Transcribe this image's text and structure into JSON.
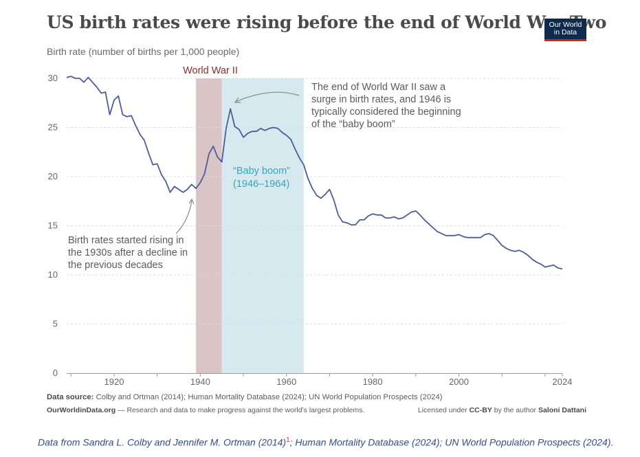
{
  "title": "US birth rates were rising before the end of World War Two",
  "subtitle": "Birth rate (number of births per 1,000 people)",
  "logo": "Our World in Data",
  "chart_data": {
    "type": "line",
    "title": "US birth rates were rising before the end of World War Two",
    "ylabel": "Birth rate (number of births per 1,000 people)",
    "xlim": [
      1909,
      2024
    ],
    "ylim": [
      0,
      30
    ],
    "y_ticks": [
      0,
      5,
      10,
      15,
      20,
      25,
      30
    ],
    "x_ticks": [
      1920,
      1940,
      1960,
      1980,
      2000,
      2024
    ],
    "grid": true,
    "series": [
      {
        "name": "US birth rate",
        "color": "#4c5b9c",
        "x": [
          1909,
          1910,
          1911,
          1912,
          1913,
          1914,
          1915,
          1916,
          1917,
          1918,
          1919,
          1920,
          1921,
          1922,
          1923,
          1924,
          1925,
          1926,
          1927,
          1928,
          1929,
          1930,
          1931,
          1932,
          1933,
          1934,
          1935,
          1936,
          1937,
          1938,
          1939,
          1940,
          1941,
          1942,
          1943,
          1944,
          1945,
          1946,
          1947,
          1948,
          1949,
          1950,
          1951,
          1952,
          1953,
          1954,
          1955,
          1956,
          1957,
          1958,
          1959,
          1960,
          1961,
          1962,
          1963,
          1964,
          1965,
          1966,
          1967,
          1968,
          1969,
          1970,
          1971,
          1972,
          1973,
          1974,
          1975,
          1976,
          1977,
          1978,
          1979,
          1980,
          1981,
          1982,
          1983,
          1984,
          1985,
          1986,
          1987,
          1988,
          1989,
          1990,
          1991,
          1992,
          1993,
          1994,
          1995,
          1996,
          1997,
          1998,
          1999,
          2000,
          2001,
          2002,
          2003,
          2004,
          2005,
          2006,
          2007,
          2008,
          2009,
          2010,
          2011,
          2012,
          2013,
          2014,
          2015,
          2016,
          2017,
          2018,
          2019,
          2020,
          2021,
          2022,
          2023,
          2024
        ],
        "values": [
          30.1,
          30.2,
          30.0,
          30.0,
          29.6,
          30.1,
          29.6,
          29.1,
          28.5,
          28.6,
          26.3,
          27.8,
          28.2,
          26.3,
          26.1,
          26.2,
          25.2,
          24.3,
          23.7,
          22.4,
          21.2,
          21.3,
          20.2,
          19.5,
          18.4,
          19.0,
          18.7,
          18.4,
          18.7,
          19.2,
          18.8,
          19.4,
          20.3,
          22.3,
          23.1,
          22.0,
          21.5,
          24.9,
          26.9,
          25.1,
          24.8,
          24.0,
          24.4,
          24.6,
          24.6,
          24.9,
          24.7,
          24.9,
          25.0,
          24.9,
          24.5,
          24.2,
          23.8,
          22.8,
          21.9,
          21.2,
          19.8,
          18.8,
          18.1,
          17.8,
          18.2,
          18.7,
          17.6,
          16.1,
          15.4,
          15.3,
          15.1,
          15.1,
          15.6,
          15.6,
          16.0,
          16.2,
          16.1,
          16.1,
          15.8,
          15.8,
          15.9,
          15.7,
          15.8,
          16.1,
          16.4,
          16.5,
          16.1,
          15.6,
          15.2,
          14.8,
          14.4,
          14.2,
          14.0,
          14.0,
          14.0,
          14.1,
          13.9,
          13.8,
          13.8,
          13.8,
          13.8,
          14.1,
          14.2,
          14.0,
          13.5,
          13.0,
          12.7,
          12.5,
          12.4,
          12.5,
          12.3,
          12.0,
          11.6,
          11.3,
          11.1,
          10.8,
          10.9,
          11.0,
          10.7,
          10.6
        ]
      }
    ],
    "shaded_regions": [
      {
        "name": "World War II",
        "x_start": 1939,
        "x_end": 1945,
        "color": "#d9c5c6"
      },
      {
        "name": "Baby boom",
        "x_start": 1945,
        "x_end": 1964,
        "color": "#d6e9ee"
      }
    ],
    "annotations": {
      "war_label": "World War II",
      "baby_boom_line1": "“Baby boom”",
      "baby_boom_line2": "(1946–1964)",
      "postwar": [
        "The end of World War II saw a",
        "surge in birth rates, and 1946 is",
        "typically considered the beginning",
        "of the “baby boom”"
      ],
      "thirties": [
        "Birth rates started rising in",
        "the 1930s after a decline in",
        "the previous decades"
      ]
    }
  },
  "footer": {
    "source_label": "Data source:",
    "source_text": "Colby and Ortman (2014); Human Mortality Database (2024); UN World Population Prospects (2024)",
    "site": "OurWorldinData.org",
    "tagline": "— Research and data to make progress against the world’s largest problems.",
    "license_prefix": "Licensed under",
    "license": "CC-BY",
    "license_mid": "by the author",
    "author": "Saloni Dattani"
  },
  "caption": {
    "text_before": "Data from Sandra L. Colby and Jennifer M. Ortman (2014)",
    "footnote": "1",
    "text_after": "; Human Mortality Database (2024); UN World Population Prospects (2024)."
  }
}
